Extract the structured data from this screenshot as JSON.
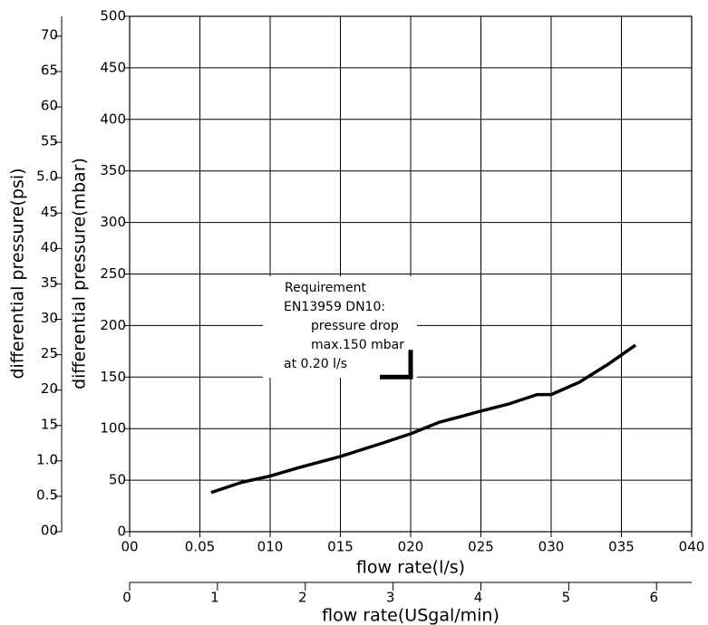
{
  "chart_data": {
    "type": "line",
    "x_label": "flow rate(l/s)",
    "y_label": "differential pressure(mbar)",
    "y2_label": "differential pressure(psi)",
    "x2_label": "flow rate(USgal/min)",
    "series": [
      {
        "name": "pressure drop",
        "color": "#000000",
        "x": [
          0.058,
          0.08,
          0.1,
          0.12,
          0.15,
          0.18,
          0.2,
          0.22,
          0.25,
          0.27,
          0.29,
          0.3,
          0.32,
          0.34,
          0.36
        ],
        "values": [
          38,
          48,
          54,
          62,
          73,
          86,
          95,
          106,
          117,
          124,
          133,
          133,
          145,
          162,
          181
        ]
      }
    ],
    "xlim": [
      0,
      0.4
    ],
    "xticks": [
      {
        "value": 0,
        "label": "00"
      },
      {
        "value": 0.05,
        "label": "0.05"
      },
      {
        "value": 0.1,
        "label": "010"
      },
      {
        "value": 0.15,
        "label": "015"
      },
      {
        "value": 0.2,
        "label": "020"
      },
      {
        "value": 0.25,
        "label": "025"
      },
      {
        "value": 0.3,
        "label": "030"
      },
      {
        "value": 0.35,
        "label": "035"
      },
      {
        "value": 0.4,
        "label": "040"
      }
    ],
    "ylim": [
      0,
      500
    ],
    "yticks": [
      0,
      50,
      100,
      150,
      200,
      250,
      300,
      350,
      400,
      450,
      500
    ],
    "y2lim": [
      0,
      7.28
    ],
    "y2ticks": [
      {
        "value": 0,
        "label": "00"
      },
      0.5,
      {
        "value": 1.0,
        "label": "1.0"
      },
      {
        "value": 1.5,
        "label": "15"
      },
      {
        "value": 2.0,
        "label": "20"
      },
      {
        "value": 2.5,
        "label": "25"
      },
      {
        "value": 3.0,
        "label": "30"
      },
      {
        "value": 3.5,
        "label": "35"
      },
      {
        "value": 4.0,
        "label": "40"
      },
      {
        "value": 4.5,
        "label": "45"
      },
      {
        "value": 5.0,
        "label": "5.0"
      },
      {
        "value": 5.5,
        "label": "55"
      },
      {
        "value": 6.0,
        "label": "60"
      },
      {
        "value": 6.5,
        "label": "65"
      },
      {
        "value": 7.0,
        "label": "70"
      }
    ],
    "x2lim": [
      0,
      6.4
    ],
    "x2ticks": [
      0,
      1,
      2,
      3,
      4,
      5,
      6
    ],
    "grid": true,
    "annotation": {
      "lines": [
        "Requirement",
        "EN13959 DN10:",
        "pressure drop",
        "max.150 mbar",
        "at 0.20 l/s"
      ],
      "x": 0.2,
      "y": 150
    }
  }
}
